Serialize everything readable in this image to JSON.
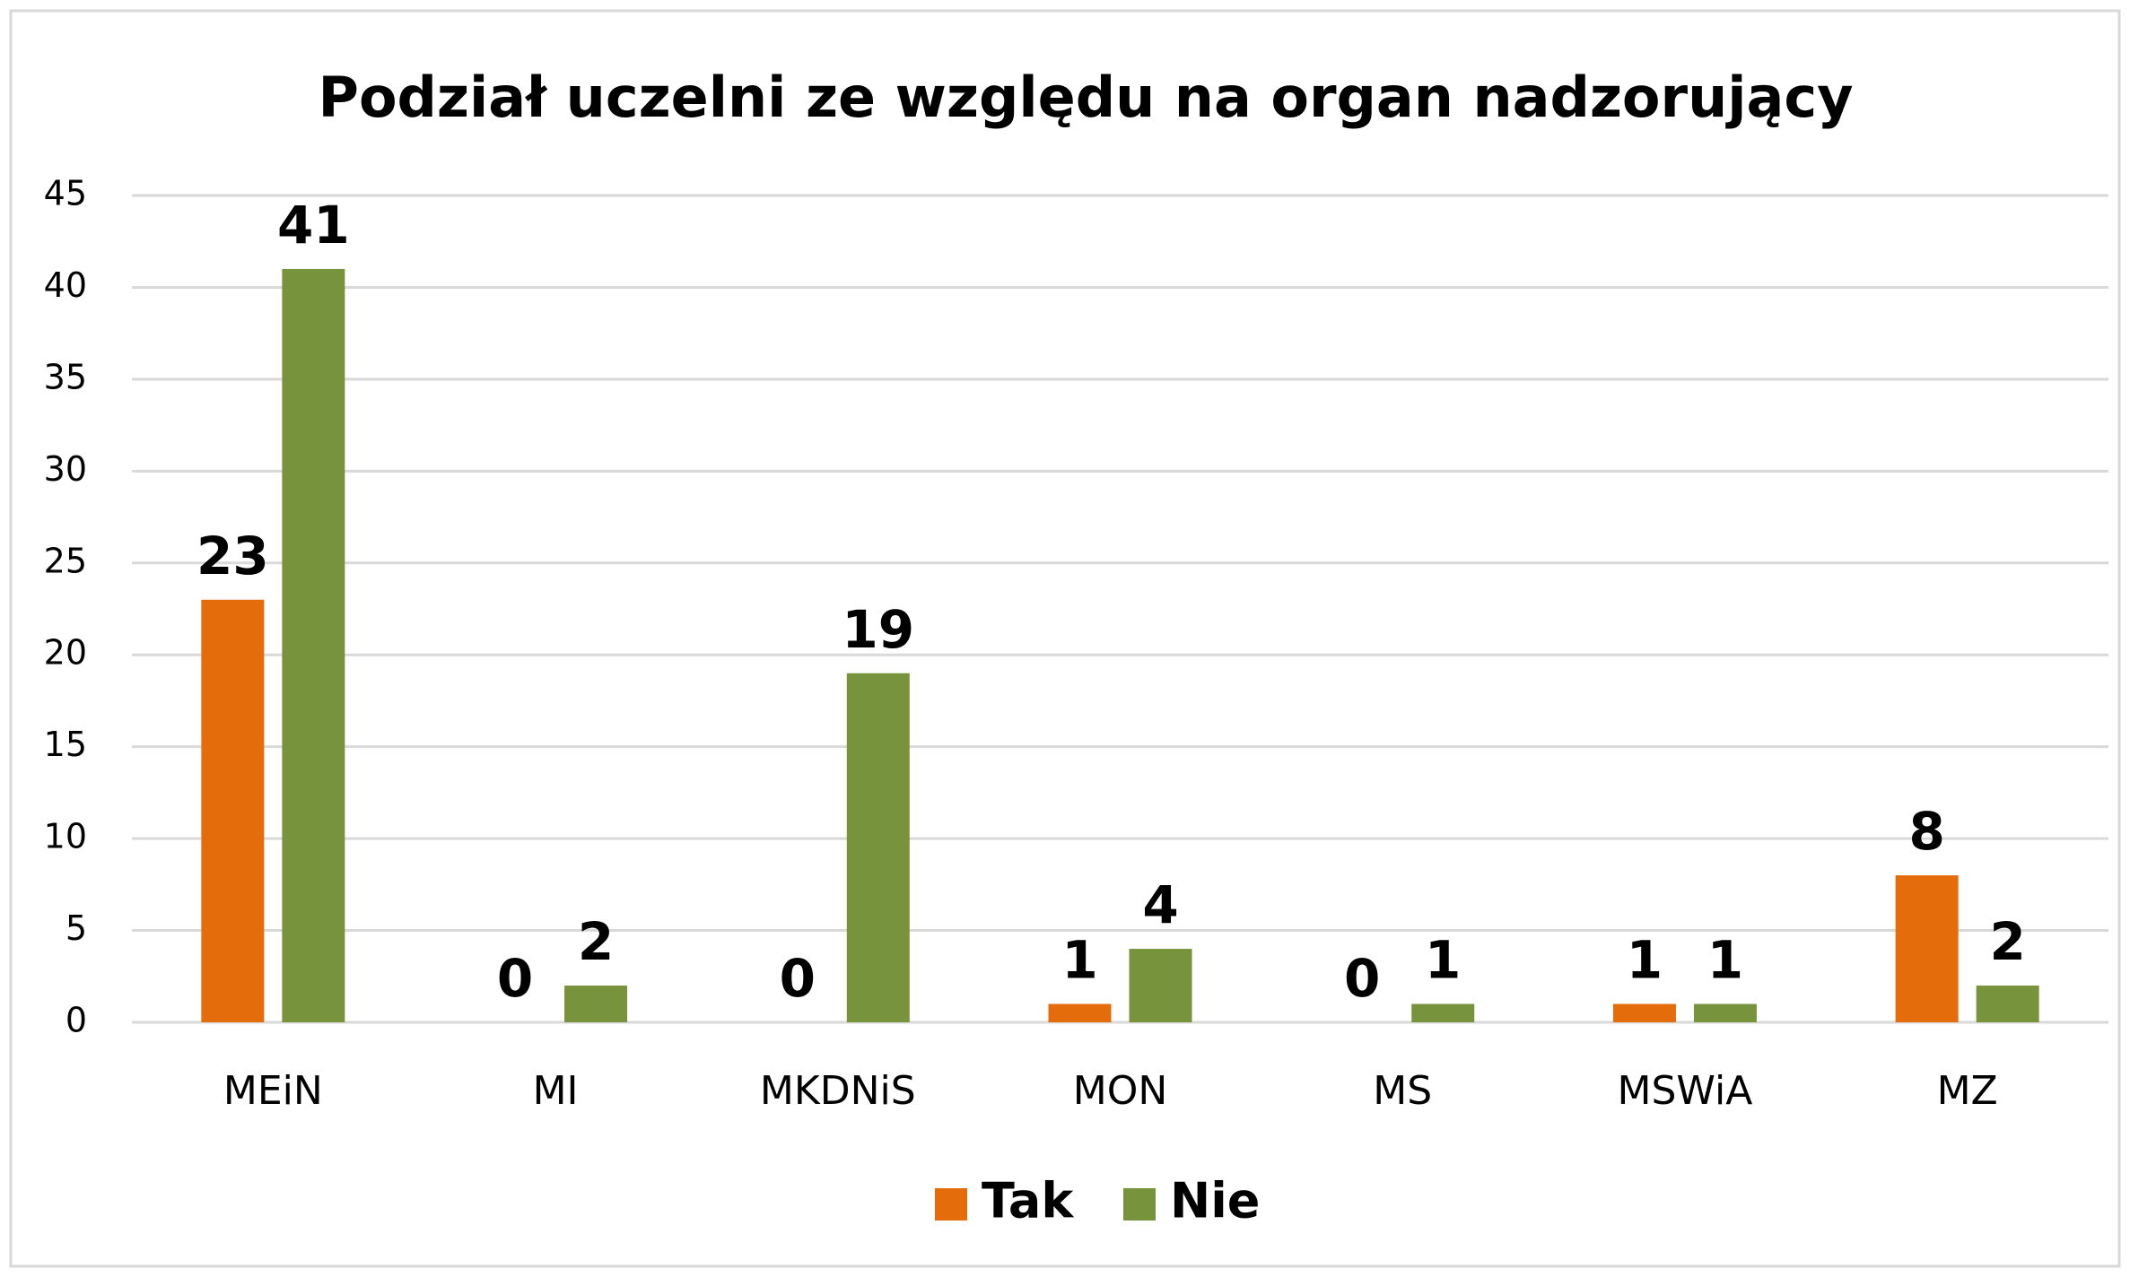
{
  "chart_data": {
    "type": "bar",
    "title": "Podział uczelni ze względu na organ nadzorujący",
    "categories": [
      "MEiN",
      "MI",
      "MKDNiS",
      "MON",
      "MS",
      "MSWiA",
      "MZ"
    ],
    "series": [
      {
        "name": "Tak",
        "color": "#e46c0a",
        "values": [
          23,
          0,
          0,
          1,
          0,
          1,
          8
        ]
      },
      {
        "name": "Nie",
        "color": "#77933c",
        "values": [
          41,
          2,
          19,
          4,
          1,
          1,
          2
        ]
      }
    ],
    "ylim": [
      0,
      45
    ],
    "yticks": [
      0,
      5,
      10,
      15,
      20,
      25,
      30,
      35,
      40,
      45
    ],
    "grid": true,
    "legend": "bottom"
  }
}
